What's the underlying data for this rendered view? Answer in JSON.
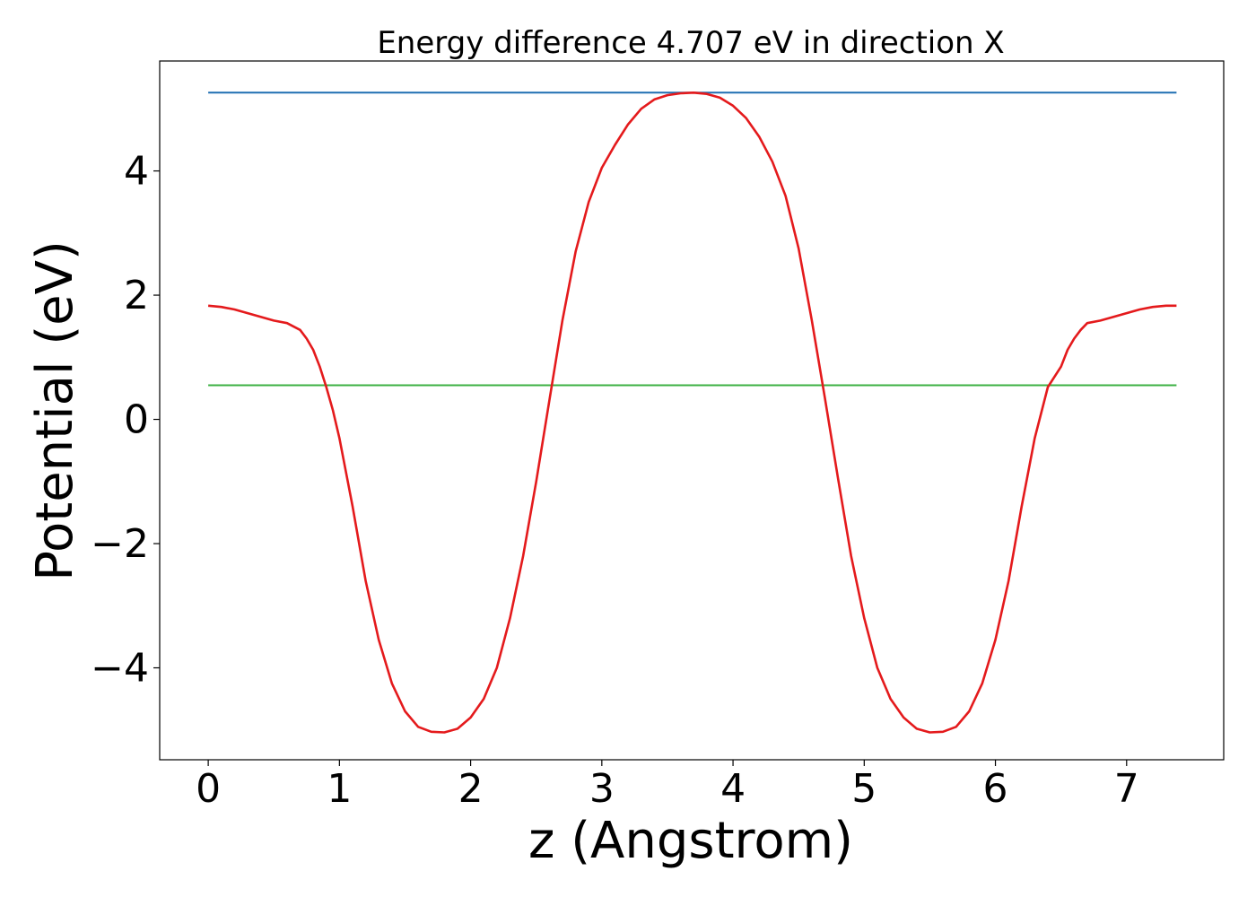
{
  "chart_data": {
    "type": "line",
    "title": "Energy difference 4.707 eV in direction X",
    "xlabel": "z (Angstrom)",
    "ylabel": "Potential (eV)",
    "xlim": [
      -0.37,
      7.74
    ],
    "ylim": [
      -5.48,
      5.77
    ],
    "xticks": [
      0,
      1,
      2,
      3,
      4,
      5,
      6,
      7
    ],
    "yticks": [
      -4,
      -2,
      0,
      2,
      4
    ],
    "xtick_labels": [
      "0",
      "1",
      "2",
      "3",
      "4",
      "5",
      "6",
      "7"
    ],
    "ytick_labels": [
      "−4",
      "−2",
      "0",
      "2",
      "4"
    ],
    "grid": false,
    "series": [
      {
        "color": "#e41a1c",
        "x": [
          0.0,
          0.1,
          0.2,
          0.3,
          0.4,
          0.5,
          0.6,
          0.7,
          0.75,
          0.8,
          0.85,
          0.9,
          0.95,
          1.0,
          1.1,
          1.2,
          1.3,
          1.4,
          1.5,
          1.6,
          1.7,
          1.8,
          1.9,
          2.0,
          2.1,
          2.2,
          2.3,
          2.4,
          2.5,
          2.6,
          2.7,
          2.8,
          2.9,
          3.0,
          3.1,
          3.2,
          3.3,
          3.4,
          3.5,
          3.6,
          3.7,
          3.8,
          3.9,
          4.0,
          4.1,
          4.2,
          4.3,
          4.4,
          4.5,
          4.6,
          4.7,
          4.8,
          4.9,
          5.0,
          5.1,
          5.2,
          5.3,
          5.4,
          5.5,
          5.6,
          5.7,
          5.8,
          5.9,
          6.0,
          6.1,
          6.2,
          6.3,
          6.4,
          6.5,
          6.55,
          6.6,
          6.65,
          6.7,
          6.8,
          6.9,
          7.0,
          7.1,
          7.2,
          7.3,
          7.38
        ],
        "y": [
          1.83,
          1.81,
          1.77,
          1.71,
          1.65,
          1.59,
          1.55,
          1.44,
          1.3,
          1.12,
          0.85,
          0.52,
          0.15,
          -0.3,
          -1.4,
          -2.6,
          -3.55,
          -4.25,
          -4.7,
          -4.95,
          -5.03,
          -5.04,
          -4.98,
          -4.8,
          -4.5,
          -4.0,
          -3.2,
          -2.2,
          -1.0,
          0.3,
          1.6,
          2.7,
          3.5,
          4.05,
          4.42,
          4.75,
          5.0,
          5.15,
          5.22,
          5.25,
          5.26,
          5.24,
          5.18,
          5.05,
          4.85,
          4.55,
          4.15,
          3.6,
          2.75,
          1.6,
          0.35,
          -0.95,
          -2.2,
          -3.2,
          -4.0,
          -4.5,
          -4.8,
          -4.98,
          -5.04,
          -5.03,
          -4.95,
          -4.7,
          -4.25,
          -3.55,
          -2.6,
          -1.4,
          -0.3,
          0.52,
          0.85,
          1.12,
          1.3,
          1.44,
          1.55,
          1.59,
          1.65,
          1.71,
          1.77,
          1.81,
          1.83,
          1.83
        ]
      },
      {
        "color": "#1f6fb2",
        "x": [
          0.0,
          7.38
        ],
        "y": [
          5.26,
          5.26
        ]
      },
      {
        "color": "#3cb043",
        "x": [
          0.0,
          7.38
        ],
        "y": [
          0.55,
          0.55
        ]
      }
    ]
  }
}
